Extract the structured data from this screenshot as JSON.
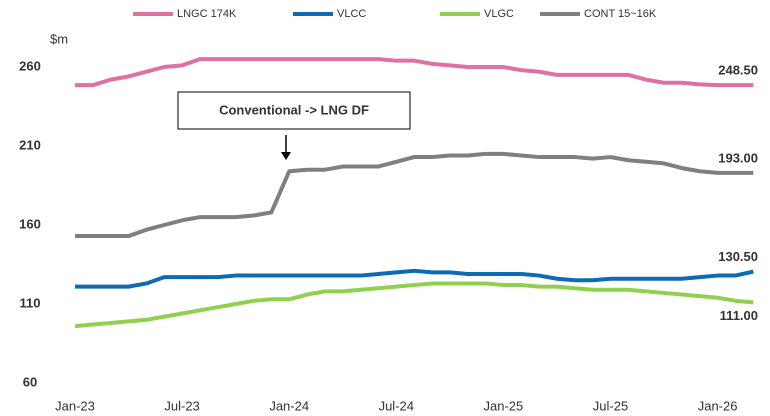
{
  "chart_data": {
    "type": "line",
    "y_label": "$m",
    "annotation": "Conventional -> LNG DF",
    "categories": [
      "Jan-23",
      null,
      null,
      null,
      null,
      null,
      "Jul-23",
      null,
      null,
      null,
      null,
      null,
      "Jan-24",
      null,
      null,
      null,
      null,
      null,
      "Jul-24",
      null,
      null,
      null,
      null,
      null,
      "Jan-25",
      null,
      null,
      null,
      null,
      null,
      "Jul-25",
      null,
      null,
      null,
      null,
      null,
      "Jan-26",
      null,
      null
    ],
    "ylim": [
      60,
      260
    ],
    "yticks": [
      60,
      110,
      160,
      210,
      260
    ],
    "grid": false,
    "legend": "top",
    "series": [
      {
        "name": "LNGC 174K",
        "color": "#e0709f",
        "values": [
          248.5,
          248.5,
          252,
          254,
          257,
          260,
          261,
          265,
          265,
          265,
          265,
          265,
          265,
          265,
          265,
          265,
          265,
          265,
          264,
          264,
          262,
          261,
          260,
          260,
          260,
          258,
          257,
          255,
          255,
          255,
          255,
          255,
          252,
          250,
          250,
          249,
          248.5,
          248.5,
          248.5
        ],
        "value_labels": [
          null,
          null,
          null,
          null,
          null,
          null,
          null,
          null,
          null,
          null,
          null,
          null,
          null,
          null,
          null,
          null,
          null,
          null,
          null,
          null,
          null,
          null,
          null,
          null,
          null,
          null,
          null,
          null,
          null,
          null,
          null,
          null,
          null,
          null,
          null,
          null,
          null,
          null,
          "248.50"
        ]
      },
      {
        "name": "VLCC",
        "color": "#0f6ab4",
        "values": [
          121,
          121,
          121,
          121,
          123,
          127,
          127,
          127,
          127,
          128,
          128,
          128,
          128,
          128,
          128,
          128,
          128,
          129,
          130,
          131,
          130,
          130,
          129,
          129,
          129,
          129,
          128,
          126,
          125,
          125,
          126,
          126,
          126,
          126,
          126,
          127,
          128,
          128,
          130.5
        ],
        "value_labels": [
          null,
          null,
          null,
          null,
          null,
          null,
          null,
          null,
          null,
          null,
          null,
          null,
          null,
          null,
          null,
          null,
          null,
          null,
          null,
          null,
          null,
          null,
          null,
          null,
          null,
          null,
          null,
          null,
          null,
          null,
          null,
          null,
          null,
          null,
          null,
          null,
          null,
          null,
          "130.50"
        ]
      },
      {
        "name": "VLGC",
        "color": "#8fd14f",
        "values": [
          96,
          97,
          98,
          99,
          100,
          102,
          104,
          106,
          108,
          110,
          112,
          113,
          113,
          116,
          118,
          118,
          119,
          120,
          121,
          122,
          123,
          123,
          123,
          123,
          122,
          122,
          121,
          121,
          120,
          119,
          119,
          119,
          118,
          117,
          116,
          115,
          114,
          112,
          111
        ],
        "value_labels": [
          null,
          null,
          null,
          null,
          null,
          null,
          null,
          null,
          null,
          null,
          null,
          null,
          null,
          null,
          null,
          null,
          null,
          null,
          null,
          null,
          null,
          null,
          null,
          null,
          null,
          null,
          null,
          null,
          null,
          null,
          null,
          null,
          null,
          null,
          null,
          null,
          null,
          null,
          "111.00"
        ]
      },
      {
        "name": "CONT 15~16K",
        "color": "#7f7f7f",
        "values": [
          153,
          153,
          153,
          153,
          157,
          160,
          163,
          165,
          165,
          165,
          166,
          168,
          194,
          195,
          195,
          197,
          197,
          197,
          200,
          203,
          203,
          204,
          204,
          205,
          205,
          204,
          203,
          203,
          203,
          202,
          203,
          201,
          200,
          199,
          196,
          194,
          193,
          193,
          193
        ],
        "value_labels": [
          null,
          null,
          null,
          null,
          null,
          null,
          null,
          null,
          null,
          null,
          null,
          null,
          null,
          null,
          null,
          null,
          null,
          null,
          null,
          null,
          null,
          null,
          null,
          null,
          null,
          null,
          null,
          null,
          null,
          null,
          null,
          null,
          null,
          null,
          null,
          null,
          null,
          null,
          "193.00"
        ]
      }
    ]
  }
}
